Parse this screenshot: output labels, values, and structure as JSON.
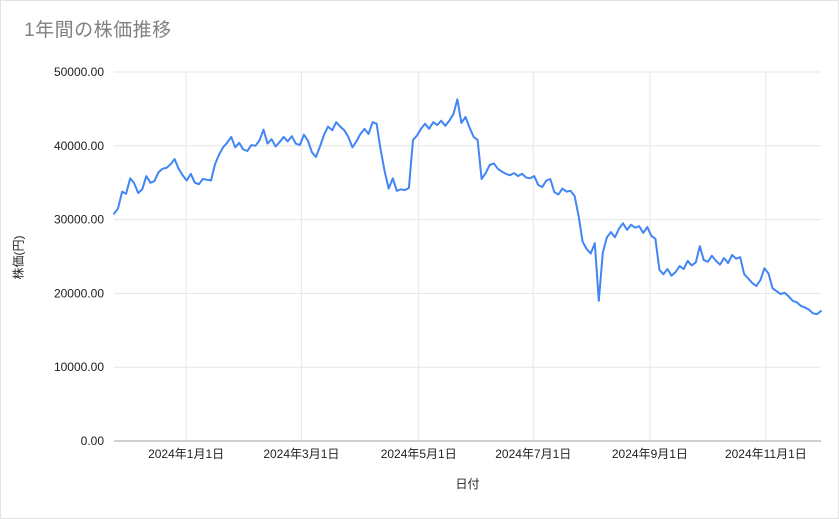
{
  "chart_data": {
    "type": "line",
    "title": "1年間の株価推移",
    "xlabel": "日付",
    "ylabel": "株価(円)",
    "line_color": "#4285f4",
    "gridline_color": "#e6e6e6",
    "baseline_color": "#9aa0a6",
    "ylim": [
      0,
      50000
    ],
    "y_ticks": [
      {
        "value": 0,
        "label": "0.00"
      },
      {
        "value": 10000,
        "label": "10000.00"
      },
      {
        "value": 20000,
        "label": "20000.00"
      },
      {
        "value": 30000,
        "label": "30000.00"
      },
      {
        "value": 40000,
        "label": "40000.00"
      },
      {
        "value": 50000,
        "label": "50000.00"
      }
    ],
    "x_ticks": [
      {
        "f": 0.102,
        "label": "2024年1月1日"
      },
      {
        "f": 0.265,
        "label": "2024年3月1日"
      },
      {
        "f": 0.431,
        "label": "2024年5月1日"
      },
      {
        "f": 0.593,
        "label": "2024年7月1日"
      },
      {
        "f": 0.758,
        "label": "2024年9月1日"
      },
      {
        "f": 0.922,
        "label": "2024年11月1日"
      }
    ],
    "values": [
      30800,
      31500,
      33800,
      33500,
      35600,
      34900,
      33600,
      34100,
      35900,
      35000,
      35200,
      36400,
      36900,
      37000,
      37500,
      38200,
      36900,
      36000,
      35300,
      36200,
      35000,
      34800,
      35500,
      35400,
      35300,
      37500,
      38800,
      39800,
      40400,
      41200,
      39800,
      40400,
      39500,
      39300,
      40100,
      40000,
      40700,
      42200,
      40300,
      40900,
      39900,
      40500,
      41200,
      40600,
      41300,
      40300,
      40100,
      41500,
      40700,
      39100,
      38500,
      39900,
      41500,
      42600,
      42100,
      43200,
      42600,
      42100,
      41200,
      39800,
      40600,
      41600,
      42300,
      41600,
      43200,
      43000,
      39500,
      36500,
      34200,
      35600,
      33900,
      34100,
      34000,
      34300,
      40800,
      41400,
      42300,
      43000,
      42300,
      43200,
      42800,
      43400,
      42700,
      43400,
      44300,
      46300,
      43100,
      43900,
      42500,
      41200,
      40800,
      35500,
      36300,
      37400,
      37600,
      36900,
      36500,
      36200,
      36000,
      36300,
      35900,
      36200,
      35700,
      35600,
      35900,
      34700,
      34400,
      35300,
      35500,
      33700,
      33400,
      34200,
      33800,
      33900,
      33200,
      30500,
      27000,
      26000,
      25400,
      26800,
      19000,
      25500,
      27600,
      28300,
      27600,
      28800,
      29500,
      28600,
      29300,
      28900,
      29100,
      28200,
      29000,
      27800,
      27400,
      23200,
      22600,
      23300,
      22400,
      22900,
      23700,
      23300,
      24400,
      23800,
      24200,
      26400,
      24500,
      24300,
      25100,
      24400,
      23900,
      24800,
      24100,
      25200,
      24700,
      24900,
      22600,
      22000,
      21400,
      21000,
      21800,
      23400,
      22700,
      20700,
      20300,
      19900,
      20100,
      19600,
      19000,
      18800,
      18300,
      18100,
      17800,
      17300,
      17200,
      17600
    ]
  }
}
